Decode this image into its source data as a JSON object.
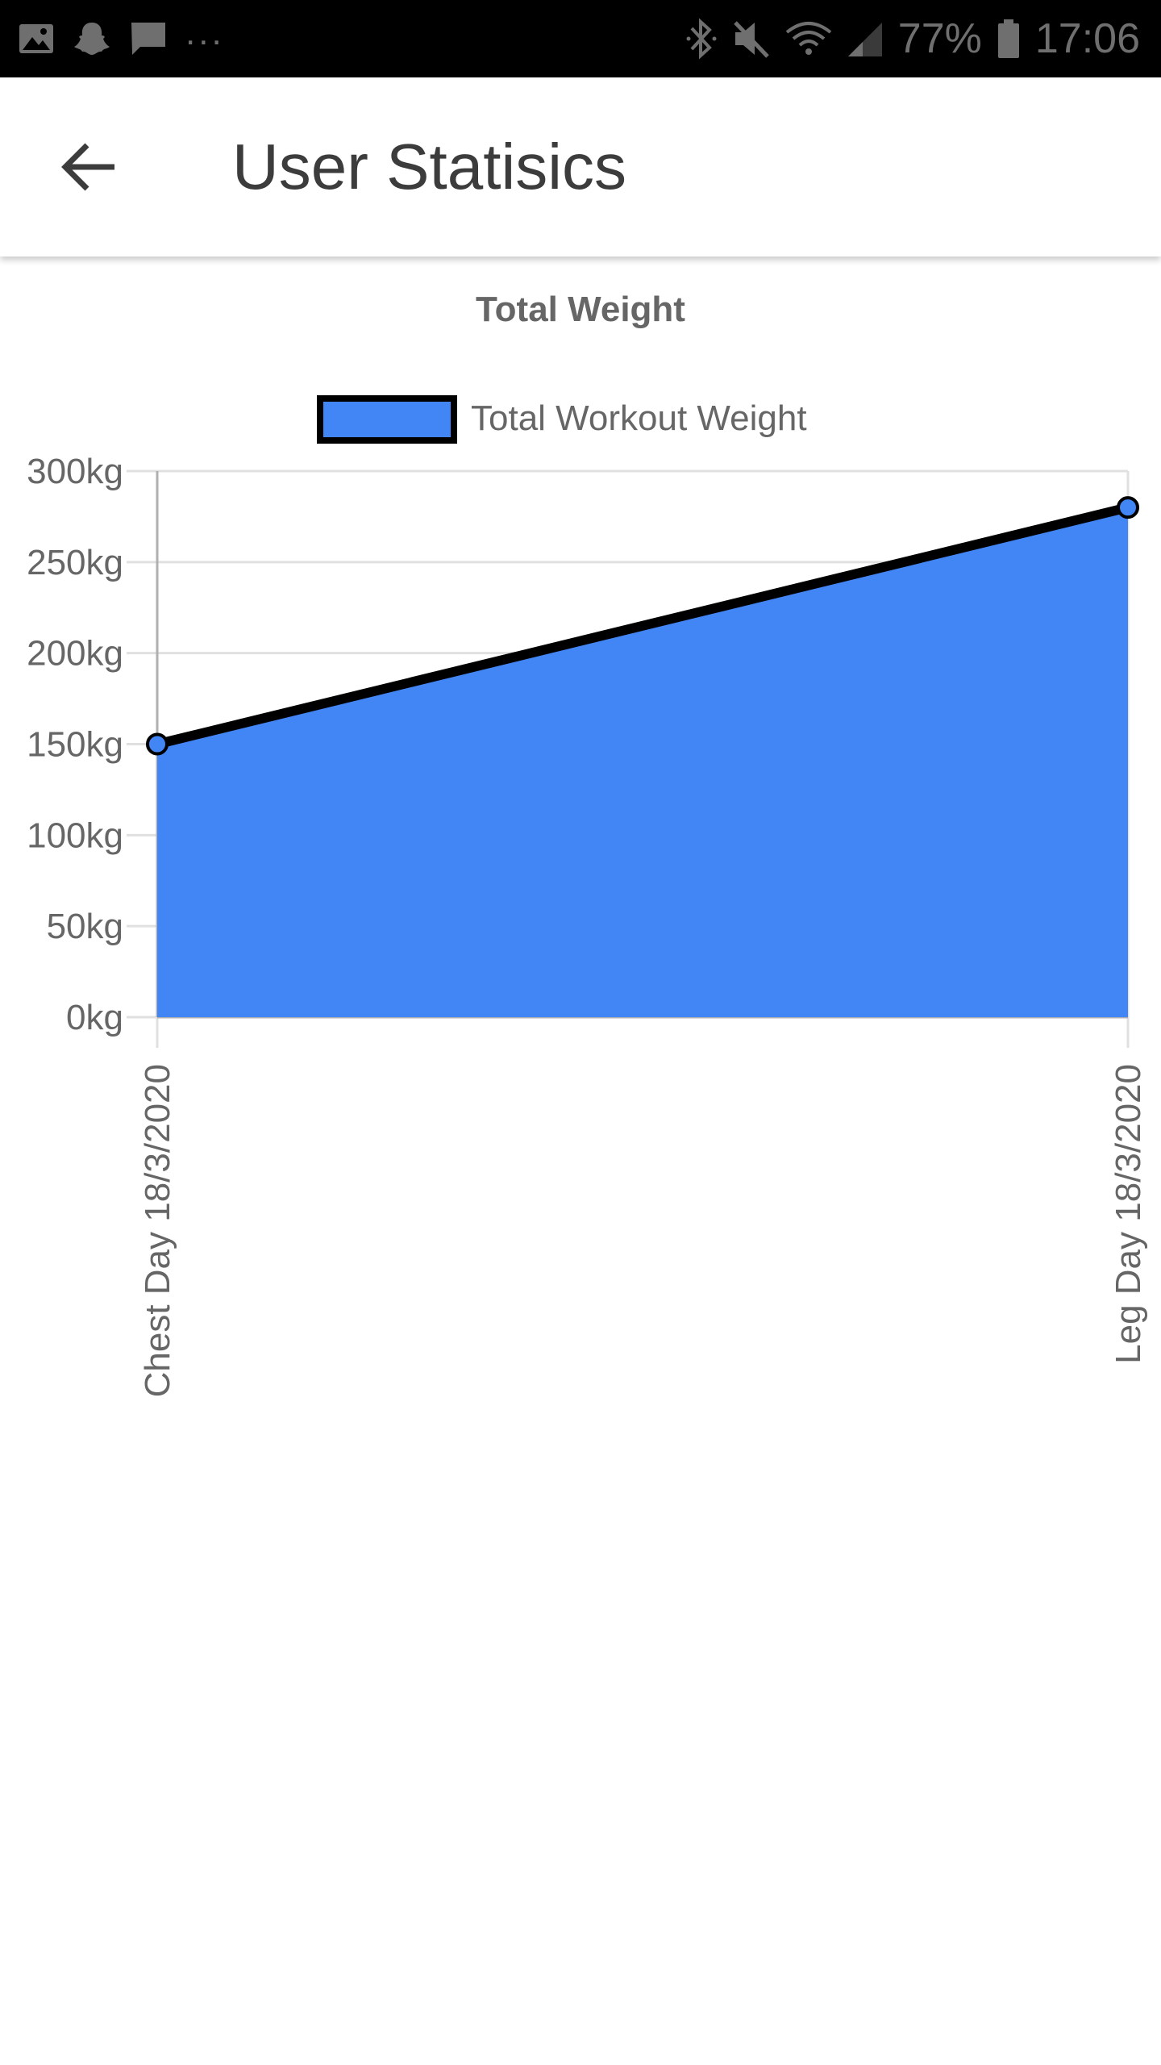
{
  "status_bar": {
    "battery": "77%",
    "time": "17:06",
    "notification_overflow": "...",
    "icons_left": [
      "image-icon",
      "snapchat-icon",
      "message-icon"
    ],
    "icons_right": [
      "bluetooth-icon",
      "muted-icon",
      "wifi-icon",
      "signal-icon",
      "battery-icon"
    ]
  },
  "app_bar": {
    "title": "User Statisics",
    "back_icon": "arrow-left-icon"
  },
  "chart_data": {
    "type": "area",
    "title": "Total Weight",
    "categories": [
      "Chest Day 18/3/2020",
      "Leg Day 18/3/2020"
    ],
    "series": [
      {
        "name": "Total Workout Weight",
        "values": [
          150,
          280
        ]
      }
    ],
    "yticks": [
      "0kg",
      "50kg",
      "100kg",
      "150kg",
      "200kg",
      "250kg",
      "300kg"
    ],
    "ylim": [
      0,
      300
    ],
    "grid": true,
    "legend": "top-center",
    "colors": {
      "fill": "#4285f4",
      "line": "#000000",
      "grid": "#e0e0e0",
      "text": "#666666"
    }
  }
}
